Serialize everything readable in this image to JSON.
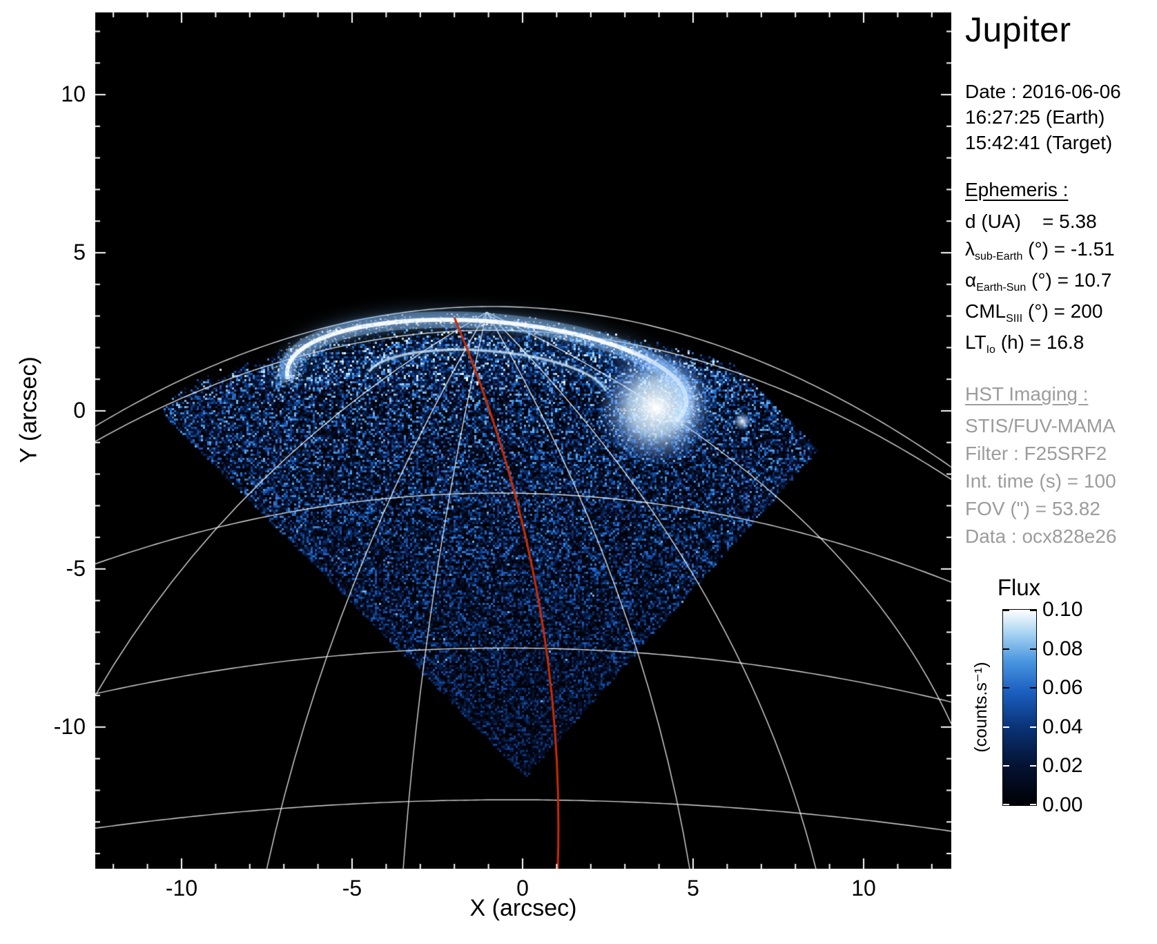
{
  "title": "Jupiter",
  "info": {
    "date_line": "Date : 2016-06-06",
    "time_earth": "16:27:25 (Earth)",
    "time_target": "15:42:41 (Target)",
    "ephemeris_heading": "Ephemeris :",
    "ephemeris": [
      {
        "sym": "d",
        "sub": "",
        "rest": " (UA)    = 5.38"
      },
      {
        "sym": "λ",
        "sub": "sub-Earth",
        "rest": " (°) = -1.51"
      },
      {
        "sym": "α",
        "sub": "Earth-Sun",
        "rest": " (°) = 10.7"
      },
      {
        "sym": "CML",
        "sub": "SIII",
        "rest": " (°) = 200"
      },
      {
        "sym": "LT",
        "sub": "Io",
        "rest": " (h) = 16.8"
      }
    ],
    "hst_heading": "HST Imaging :",
    "hst_lines": [
      "STIS/FUV-MAMA",
      "Filter : F25SRF2",
      "Int. time (s) = 100",
      "FOV (\") = 53.82",
      "Data : ocx828e26"
    ]
  },
  "colorbar": {
    "title": "Flux",
    "unit": "(counts.s⁻¹)",
    "ticks": [
      "0.10",
      "0.08",
      "0.06",
      "0.04",
      "0.02",
      "0.00"
    ]
  },
  "chart_data": {
    "type": "heatmap",
    "title": "Jupiter",
    "description": "HST STIS/FUV-MAMA far-ultraviolet image of Jupiter's northern aurora. Rotated-square detector field of view appears as a noisy blue diamond over black sky; bright white auroral oval near the pole; white planetary latitude/longitude graticule; red central-meridian line.",
    "xlabel": "X (arcsec)",
    "ylabel": "Y (arcsec)",
    "xlim": [
      -12.53,
      12.57
    ],
    "ylim": [
      -14.48,
      12.6
    ],
    "xticks": [
      -10,
      -5,
      0,
      5,
      10
    ],
    "yticks": [
      -10,
      -5,
      0,
      5,
      10
    ],
    "minor_tick_step": 1,
    "background": "#000000",
    "flux_range": [
      0.0,
      0.1
    ],
    "fov_diamond": [
      [
        -2.02,
        10.37
      ],
      [
        8.66,
        -1.2
      ],
      [
        0.06,
        -11.57
      ],
      [
        -10.63,
        0.0
      ]
    ],
    "noise_top": {
      "x0": -1.0,
      "y0": 2.55,
      "c": 0.024
    },
    "graticule": {
      "color": "#ffffff",
      "pole": [
        -1.05,
        3.12
      ],
      "lat_arcs": [
        {
          "x0": -0.9,
          "y0": 3.3,
          "c": 0.028
        },
        {
          "x0": -0.9,
          "y0": 2.55,
          "c": 0.026
        },
        {
          "x0": -0.7,
          "y0": -2.6,
          "c": 0.016
        },
        {
          "x0": -0.5,
          "y0": -7.5,
          "c": 0.01
        },
        {
          "x0": -0.3,
          "y0": -12.3,
          "c": 0.006
        }
      ],
      "meridians": [
        {
          "ctrl": [
            -8.5,
            -1.5
          ],
          "end": [
            -12.53,
            -9.0
          ]
        },
        {
          "ctrl": [
            -5.6,
            -5.2
          ],
          "end": [
            -7.5,
            -14.48
          ]
        },
        {
          "ctrl": [
            -2.9,
            -5.6
          ],
          "end": [
            -3.5,
            -14.48
          ]
        },
        {
          "ctrl": [
            3.5,
            -5.4
          ],
          "end": [
            4.9,
            -14.48
          ]
        },
        {
          "ctrl": [
            6.4,
            -5.0
          ],
          "end": [
            8.6,
            -14.48
          ]
        },
        {
          "ctrl": [
            9.3,
            -2.2
          ],
          "end": [
            12.57,
            -9.9
          ]
        }
      ]
    },
    "cml_line": {
      "color": "#cc2b00",
      "start": [
        -2.0,
        2.95
      ],
      "ctrl": [
        1.3,
        -5.5
      ],
      "end": [
        1.03,
        -14.48
      ]
    },
    "aurora": {
      "oval_center": [
        -1.05,
        0.76
      ],
      "oval_rx": 5.87,
      "oval_ry": 2.07,
      "tilt_deg": 4.5,
      "bright_blob": [
        3.91,
        0.11
      ],
      "blob_radius": 1.1,
      "io_spot": [
        6.44,
        -0.33
      ],
      "inner_arc_scale": 0.6
    },
    "colormap_stops": [
      [
        0,
        "#000004"
      ],
      [
        0.2,
        "#041231"
      ],
      [
        0.4,
        "#0a3377"
      ],
      [
        0.58,
        "#1b5fc0"
      ],
      [
        0.74,
        "#4b97e0"
      ],
      [
        0.88,
        "#a8d4f2"
      ],
      [
        1,
        "#ffffff"
      ]
    ]
  }
}
